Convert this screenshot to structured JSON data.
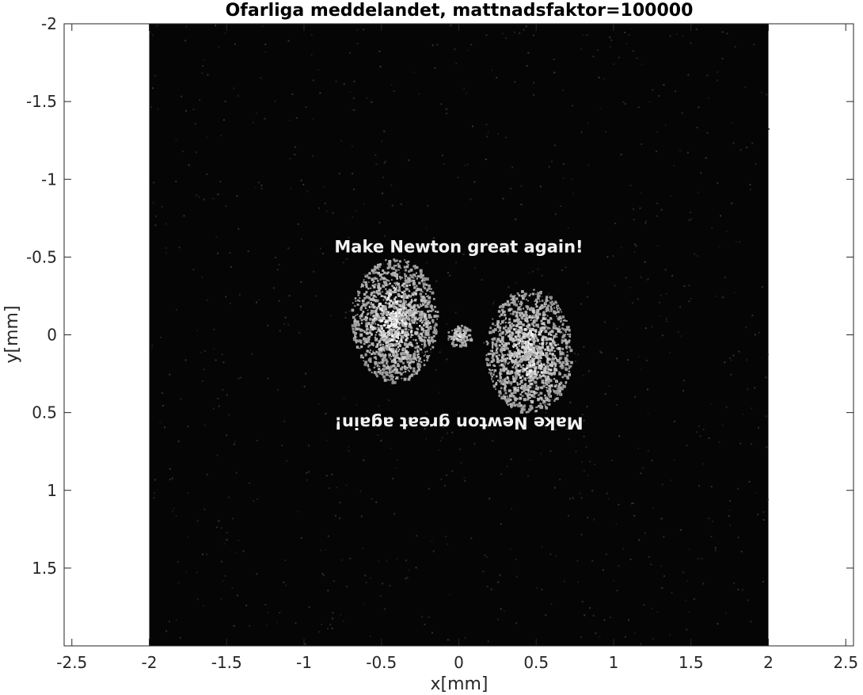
{
  "chart_data": {
    "type": "heatmap",
    "title": "Ofarliga meddelandet, mattnadsfaktor=100000",
    "xlabel": "x[mm]",
    "ylabel": "y[mm]",
    "xlim": [
      -2.55,
      2.55
    ],
    "ylim": [
      -2,
      2
    ],
    "y_reversed": true,
    "image_extent": {
      "x": [
        -2,
        2
      ],
      "y": [
        -2,
        2
      ]
    },
    "colormap": "gray",
    "xticks": [
      -2.5,
      -2,
      -1.5,
      -1,
      -0.5,
      0,
      0.5,
      1,
      1.5,
      2,
      2.5
    ],
    "xtick_labels": [
      "-2.5",
      "-2",
      "-1.5",
      "-1",
      "-0.5",
      "0",
      "0.5",
      "1",
      "1.5",
      "2",
      "2.5"
    ],
    "yticks": [
      -2,
      -1.5,
      -1,
      -0.5,
      0,
      0.5,
      1,
      1.5
    ],
    "ytick_labels": [
      "-2",
      "-1.5",
      "-1",
      "-0.5",
      "0",
      "0.5",
      "1",
      "1.5"
    ],
    "grid": false,
    "annotations": [
      {
        "text": "Make Newton great again!",
        "x": 0,
        "y": -0.57,
        "rotated": false
      },
      {
        "text": "Make Newton great again!",
        "x": 0,
        "y": 0.57,
        "rotated": true
      }
    ],
    "bright_regions": [
      {
        "cx": -0.42,
        "cy": -0.1,
        "rx": 0.28,
        "ry": 0.4
      },
      {
        "cx": 0.45,
        "cy": 0.1,
        "rx": 0.28,
        "ry": 0.4
      },
      {
        "cx": 0.0,
        "cy": 0.0,
        "rx": 0.08,
        "ry": 0.07
      }
    ]
  },
  "colors": {
    "background": "#ffffff",
    "image_dark": "#050505",
    "axis": "#262626"
  }
}
